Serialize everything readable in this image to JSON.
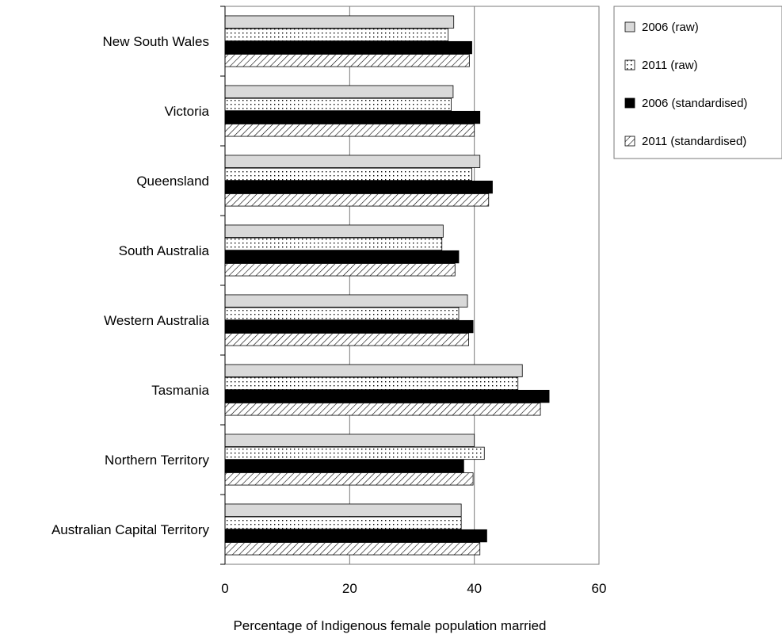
{
  "chart_data": {
    "type": "bar",
    "orientation": "horizontal",
    "categories": [
      "New South Wales",
      "Victoria",
      "Queensland",
      "South Australia",
      "Western Australia",
      "Tasmania",
      "Northern Territory",
      "Australian Capital Territory"
    ],
    "series": [
      {
        "name": "2006 (raw)",
        "pattern": "solid-light-gray",
        "color": "#d9d9d9",
        "values": [
          36.7,
          36.6,
          40.9,
          35.0,
          38.9,
          47.7,
          40.0,
          37.9
        ]
      },
      {
        "name": "2011 (raw)",
        "pattern": "dotted",
        "color": "#ffffff",
        "values": [
          35.8,
          36.3,
          39.6,
          34.8,
          37.5,
          47.0,
          41.6,
          37.9
        ]
      },
      {
        "name": "2006 (standardised)",
        "pattern": "solid-black",
        "color": "#000000",
        "values": [
          39.6,
          40.9,
          42.9,
          37.5,
          39.8,
          52.0,
          38.3,
          42.0
        ]
      },
      {
        "name": "2011 (standardised)",
        "pattern": "diagonal-hatch",
        "color": "#ffffff",
        "values": [
          39.2,
          40.0,
          42.3,
          36.9,
          39.1,
          50.6,
          39.8,
          40.9
        ]
      }
    ],
    "xlabel": "Percentage of Indigenous female population married",
    "ylabel": "",
    "xlim": [
      0,
      60
    ],
    "xticks": [
      0,
      20,
      40,
      60
    ],
    "grid": "vertical",
    "legend_position": "right-top"
  }
}
